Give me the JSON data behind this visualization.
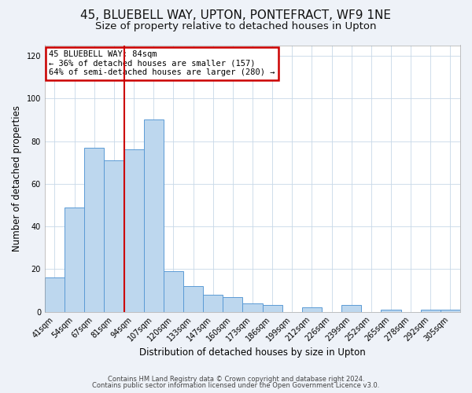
{
  "title": "45, BLUEBELL WAY, UPTON, PONTEFRACT, WF9 1NE",
  "subtitle": "Size of property relative to detached houses in Upton",
  "xlabel": "Distribution of detached houses by size in Upton",
  "ylabel": "Number of detached properties",
  "categories": [
    "41sqm",
    "54sqm",
    "67sqm",
    "81sqm",
    "94sqm",
    "107sqm",
    "120sqm",
    "133sqm",
    "147sqm",
    "160sqm",
    "173sqm",
    "186sqm",
    "199sqm",
    "212sqm",
    "226sqm",
    "239sqm",
    "252sqm",
    "265sqm",
    "278sqm",
    "292sqm",
    "305sqm"
  ],
  "values": [
    16,
    49,
    77,
    71,
    76,
    90,
    19,
    12,
    8,
    7,
    4,
    3,
    0,
    2,
    0,
    3,
    0,
    1,
    0,
    1,
    1
  ],
  "bar_color": "#bdd7ee",
  "bar_edge_color": "#5b9bd5",
  "vline_x": 3.5,
  "vline_color": "#cc0000",
  "annotation_text": "45 BLUEBELL WAY: 84sqm\n← 36% of detached houses are smaller (157)\n64% of semi-detached houses are larger (280) →",
  "annotation_box_color": "#ffffff",
  "annotation_box_edge": "#cc0000",
  "ylim": [
    0,
    125
  ],
  "yticks": [
    0,
    20,
    40,
    60,
    80,
    100,
    120
  ],
  "footer1": "Contains HM Land Registry data © Crown copyright and database right 2024.",
  "footer2": "Contains public sector information licensed under the Open Government Licence v3.0.",
  "bg_color": "#eef2f8",
  "plot_bg_color": "#ffffff",
  "title_fontsize": 11,
  "subtitle_fontsize": 9.5,
  "tick_fontsize": 7,
  "label_fontsize": 8.5,
  "footer_fontsize": 6,
  "grid_color": "#c8d8e8"
}
